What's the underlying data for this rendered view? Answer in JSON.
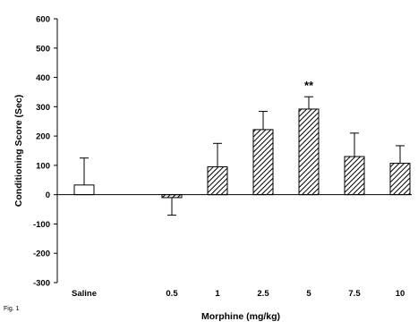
{
  "chart_data": {
    "type": "bar",
    "xlabel": "Morphine (mg/kg)",
    "ylabel": "Conditioning Score (Sec)",
    "ylim": [
      -300,
      600
    ],
    "yticks": [
      -300,
      -200,
      -100,
      0,
      100,
      200,
      300,
      400,
      500,
      600
    ],
    "categories": [
      "Saline",
      "0.5",
      "1",
      "2.5",
      "5",
      "7.5",
      "10"
    ],
    "values": [
      33,
      -10,
      95,
      222,
      292,
      130,
      107
    ],
    "error_upper": [
      92,
      0,
      80,
      62,
      42,
      80,
      60
    ],
    "error_lower": [
      0,
      60,
      0,
      0,
      0,
      0,
      0
    ],
    "fills": [
      "open",
      "hatched",
      "hatched",
      "hatched",
      "hatched",
      "hatched",
      "hatched"
    ],
    "annotations": [
      {
        "category": "5",
        "text": "**"
      }
    ],
    "grid": false,
    "legend": "none",
    "figure_label": "Fig. 1"
  }
}
